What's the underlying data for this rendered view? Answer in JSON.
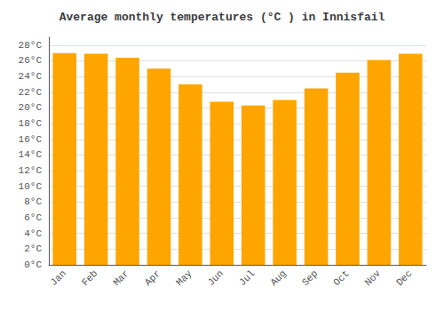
{
  "chart_data": {
    "type": "bar",
    "title": "Average monthly temperatures (°C ) in Innisfail",
    "categories": [
      "Jan",
      "Feb",
      "Mar",
      "Apr",
      "May",
      "Jun",
      "Jul",
      "Aug",
      "Sep",
      "Oct",
      "Nov",
      "Dec"
    ],
    "values": [
      27.0,
      26.9,
      26.4,
      25.0,
      23.0,
      20.8,
      20.3,
      21.0,
      22.5,
      24.5,
      26.1,
      26.9
    ],
    "color": "#FFA500",
    "ylim": [
      0,
      29
    ],
    "yticks": [
      {
        "value": 0,
        "label": "0°C"
      },
      {
        "value": 2,
        "label": "2°C"
      },
      {
        "value": 4,
        "label": "4°C"
      },
      {
        "value": 6,
        "label": "6°C"
      },
      {
        "value": 8,
        "label": "8°C"
      },
      {
        "value": 10,
        "label": "10°C"
      },
      {
        "value": 12,
        "label": "12°C"
      },
      {
        "value": 14,
        "label": "14°C"
      },
      {
        "value": 16,
        "label": "16°C"
      },
      {
        "value": 18,
        "label": "18°C"
      },
      {
        "value": 20,
        "label": "20°C"
      },
      {
        "value": 22,
        "label": "22°C"
      },
      {
        "value": 24,
        "label": "24°C"
      },
      {
        "value": 26,
        "label": "26°C"
      },
      {
        "value": 28,
        "label": "28°C"
      }
    ],
    "grid": true
  }
}
